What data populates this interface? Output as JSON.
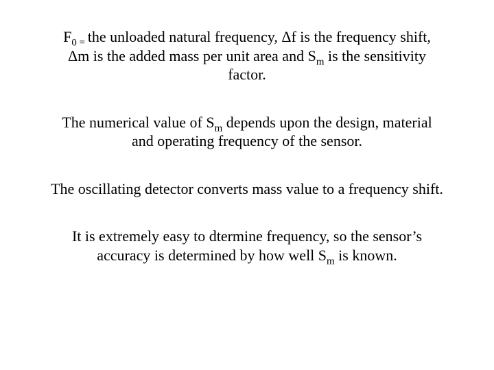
{
  "slide": {
    "fontFamily": "Times New Roman",
    "background": "#ffffff",
    "textColor": "#000000",
    "baseFontSize": 22,
    "p1": {
      "a": "F",
      "b": "0 = ",
      "c": "the unloaded natural frequency, Δf is the frequency shift, Δm is the added mass per unit area and S",
      "d": "m",
      "e": " is the sensitivity factor."
    },
    "p2": {
      "a": "The numerical value of S",
      "b": "m",
      "c": " depends upon the design, material and operating frequency of the sensor."
    },
    "p3": "The oscillating detector converts mass value to a frequency shift.",
    "p4": {
      "a": "It is extremely easy to dtermine frequency, so the sensor’s accuracy is determined by how well S",
      "b": "m",
      "c": " is known."
    }
  }
}
